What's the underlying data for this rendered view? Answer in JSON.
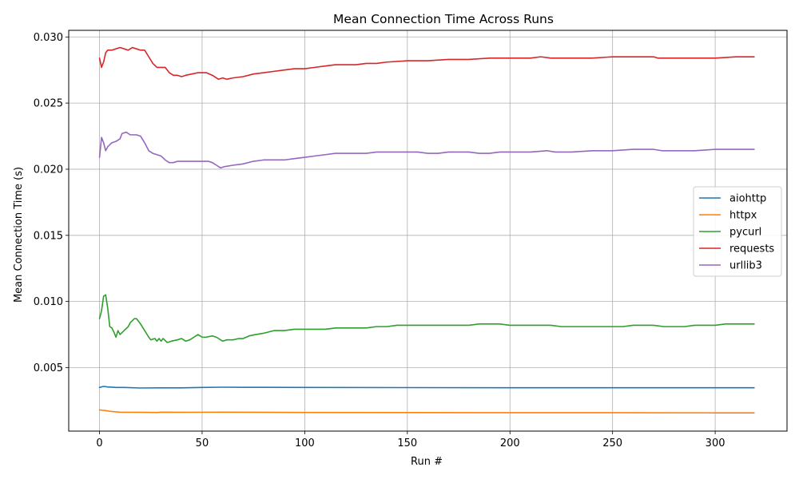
{
  "chart_data": {
    "type": "line",
    "title": "Mean Connection Time Across Runs",
    "xlabel": "Run #",
    "ylabel": "Mean Connection Time (s)",
    "xlim": [
      -15,
      335
    ],
    "ylim": [
      0.0002,
      0.0305
    ],
    "xticks": [
      0,
      50,
      100,
      150,
      200,
      250,
      300
    ],
    "yticks": [
      0.005,
      0.01,
      0.015,
      0.02,
      0.025,
      0.03
    ],
    "ytick_labels": [
      "0.005",
      "0.010",
      "0.015",
      "0.020",
      "0.025",
      "0.030"
    ],
    "grid": true,
    "legend_position": "center-right",
    "series": [
      {
        "name": "aiohttp",
        "color": "#1f77b4",
        "points": [
          [
            0,
            0.0035
          ],
          [
            2,
            0.00358
          ],
          [
            4,
            0.00354
          ],
          [
            8,
            0.0035
          ],
          [
            12,
            0.0035
          ],
          [
            20,
            0.00346
          ],
          [
            30,
            0.00347
          ],
          [
            40,
            0.00347
          ],
          [
            50,
            0.0035
          ],
          [
            60,
            0.00352
          ],
          [
            70,
            0.00351
          ],
          [
            80,
            0.00351
          ],
          [
            100,
            0.0035
          ],
          [
            150,
            0.00349
          ],
          [
            200,
            0.00348
          ],
          [
            250,
            0.00348
          ],
          [
            300,
            0.00348
          ],
          [
            319,
            0.00348
          ]
        ]
      },
      {
        "name": "httpx",
        "color": "#ff7f0e",
        "points": [
          [
            0,
            0.0018
          ],
          [
            3,
            0.00175
          ],
          [
            6,
            0.00168
          ],
          [
            10,
            0.00163
          ],
          [
            20,
            0.00162
          ],
          [
            28,
            0.00161
          ],
          [
            30,
            0.00163
          ],
          [
            40,
            0.00162
          ],
          [
            60,
            0.00163
          ],
          [
            80,
            0.00162
          ],
          [
            100,
            0.00161
          ],
          [
            150,
            0.0016
          ],
          [
            200,
            0.00159
          ],
          [
            250,
            0.00159
          ],
          [
            300,
            0.00158
          ],
          [
            319,
            0.00158
          ]
        ]
      },
      {
        "name": "pycurl",
        "color": "#2ca02c",
        "points": [
          [
            0,
            0.0087
          ],
          [
            1,
            0.0093
          ],
          [
            2,
            0.0104
          ],
          [
            3,
            0.0105
          ],
          [
            4,
            0.0095
          ],
          [
            5,
            0.0081
          ],
          [
            6,
            0.008
          ],
          [
            7,
            0.0077
          ],
          [
            8,
            0.0073
          ],
          [
            9,
            0.0078
          ],
          [
            10,
            0.0075
          ],
          [
            12,
            0.0078
          ],
          [
            14,
            0.0081
          ],
          [
            15,
            0.0084
          ],
          [
            17,
            0.0087
          ],
          [
            18,
            0.0087
          ],
          [
            20,
            0.0083
          ],
          [
            22,
            0.0078
          ],
          [
            24,
            0.0073
          ],
          [
            25,
            0.0071
          ],
          [
            27,
            0.0072
          ],
          [
            28,
            0.007
          ],
          [
            29,
            0.0072
          ],
          [
            30,
            0.007
          ],
          [
            31,
            0.0072
          ],
          [
            33,
            0.0069
          ],
          [
            35,
            0.007
          ],
          [
            38,
            0.0071
          ],
          [
            40,
            0.0072
          ],
          [
            42,
            0.007
          ],
          [
            44,
            0.0071
          ],
          [
            46,
            0.0073
          ],
          [
            48,
            0.0075
          ],
          [
            50,
            0.0073
          ],
          [
            52,
            0.0073
          ],
          [
            55,
            0.0074
          ],
          [
            57,
            0.0073
          ],
          [
            60,
            0.007
          ],
          [
            62,
            0.0071
          ],
          [
            65,
            0.0071
          ],
          [
            68,
            0.0072
          ],
          [
            70,
            0.0072
          ],
          [
            73,
            0.0074
          ],
          [
            76,
            0.0075
          ],
          [
            80,
            0.0076
          ],
          [
            85,
            0.0078
          ],
          [
            90,
            0.0078
          ],
          [
            95,
            0.0079
          ],
          [
            100,
            0.0079
          ],
          [
            105,
            0.0079
          ],
          [
            110,
            0.0079
          ],
          [
            115,
            0.008
          ],
          [
            120,
            0.008
          ],
          [
            125,
            0.008
          ],
          [
            130,
            0.008
          ],
          [
            135,
            0.0081
          ],
          [
            140,
            0.0081
          ],
          [
            145,
            0.0082
          ],
          [
            150,
            0.0082
          ],
          [
            155,
            0.0082
          ],
          [
            160,
            0.0082
          ],
          [
            165,
            0.0082
          ],
          [
            170,
            0.0082
          ],
          [
            175,
            0.0082
          ],
          [
            180,
            0.0082
          ],
          [
            185,
            0.0083
          ],
          [
            190,
            0.0083
          ],
          [
            195,
            0.0083
          ],
          [
            200,
            0.0082
          ],
          [
            205,
            0.0082
          ],
          [
            210,
            0.0082
          ],
          [
            215,
            0.0082
          ],
          [
            220,
            0.0082
          ],
          [
            225,
            0.0081
          ],
          [
            230,
            0.0081
          ],
          [
            235,
            0.0081
          ],
          [
            240,
            0.0081
          ],
          [
            245,
            0.0081
          ],
          [
            250,
            0.0081
          ],
          [
            255,
            0.0081
          ],
          [
            260,
            0.0082
          ],
          [
            265,
            0.0082
          ],
          [
            270,
            0.0082
          ],
          [
            275,
            0.0081
          ],
          [
            280,
            0.0081
          ],
          [
            285,
            0.0081
          ],
          [
            290,
            0.0082
          ],
          [
            295,
            0.0082
          ],
          [
            300,
            0.0082
          ],
          [
            305,
            0.0083
          ],
          [
            310,
            0.0083
          ],
          [
            319,
            0.0083
          ]
        ]
      },
      {
        "name": "requests",
        "color": "#d62728",
        "points": [
          [
            0,
            0.0284
          ],
          [
            1,
            0.0277
          ],
          [
            2,
            0.0281
          ],
          [
            3,
            0.0288
          ],
          [
            4,
            0.029
          ],
          [
            6,
            0.029
          ],
          [
            8,
            0.0291
          ],
          [
            10,
            0.0292
          ],
          [
            12,
            0.0291
          ],
          [
            14,
            0.029
          ],
          [
            16,
            0.0292
          ],
          [
            18,
            0.0291
          ],
          [
            20,
            0.029
          ],
          [
            22,
            0.029
          ],
          [
            24,
            0.0285
          ],
          [
            26,
            0.028
          ],
          [
            28,
            0.0277
          ],
          [
            30,
            0.0277
          ],
          [
            32,
            0.0277
          ],
          [
            34,
            0.0273
          ],
          [
            36,
            0.0271
          ],
          [
            38,
            0.0271
          ],
          [
            40,
            0.027
          ],
          [
            42,
            0.0271
          ],
          [
            45,
            0.0272
          ],
          [
            48,
            0.0273
          ],
          [
            50,
            0.0273
          ],
          [
            52,
            0.0273
          ],
          [
            55,
            0.0271
          ],
          [
            58,
            0.0268
          ],
          [
            60,
            0.0269
          ],
          [
            62,
            0.0268
          ],
          [
            65,
            0.0269
          ],
          [
            70,
            0.027
          ],
          [
            75,
            0.0272
          ],
          [
            80,
            0.0273
          ],
          [
            85,
            0.0274
          ],
          [
            90,
            0.0275
          ],
          [
            95,
            0.0276
          ],
          [
            100,
            0.0276
          ],
          [
            105,
            0.0277
          ],
          [
            110,
            0.0278
          ],
          [
            115,
            0.0279
          ],
          [
            120,
            0.0279
          ],
          [
            125,
            0.0279
          ],
          [
            130,
            0.028
          ],
          [
            135,
            0.028
          ],
          [
            140,
            0.0281
          ],
          [
            150,
            0.0282
          ],
          [
            160,
            0.0282
          ],
          [
            170,
            0.0283
          ],
          [
            180,
            0.0283
          ],
          [
            190,
            0.0284
          ],
          [
            200,
            0.0284
          ],
          [
            210,
            0.0284
          ],
          [
            215,
            0.0285
          ],
          [
            220,
            0.0284
          ],
          [
            230,
            0.0284
          ],
          [
            240,
            0.0284
          ],
          [
            250,
            0.0285
          ],
          [
            260,
            0.0285
          ],
          [
            270,
            0.0285
          ],
          [
            272,
            0.0284
          ],
          [
            280,
            0.0284
          ],
          [
            290,
            0.0284
          ],
          [
            300,
            0.0284
          ],
          [
            310,
            0.0285
          ],
          [
            319,
            0.0285
          ]
        ]
      },
      {
        "name": "urllib3",
        "color": "#9467bd",
        "points": [
          [
            0,
            0.0209
          ],
          [
            1,
            0.0224
          ],
          [
            2,
            0.022
          ],
          [
            3,
            0.0214
          ],
          [
            4,
            0.0217
          ],
          [
            6,
            0.022
          ],
          [
            8,
            0.0221
          ],
          [
            10,
            0.0223
          ],
          [
            11,
            0.0227
          ],
          [
            13,
            0.0228
          ],
          [
            15,
            0.0226
          ],
          [
            18,
            0.0226
          ],
          [
            20,
            0.0225
          ],
          [
            22,
            0.022
          ],
          [
            24,
            0.0214
          ],
          [
            26,
            0.0212
          ],
          [
            28,
            0.0211
          ],
          [
            30,
            0.021
          ],
          [
            32,
            0.0207
          ],
          [
            34,
            0.0205
          ],
          [
            36,
            0.0205
          ],
          [
            38,
            0.0206
          ],
          [
            40,
            0.0206
          ],
          [
            45,
            0.0206
          ],
          [
            50,
            0.0206
          ],
          [
            53,
            0.0206
          ],
          [
            55,
            0.0205
          ],
          [
            57,
            0.0203
          ],
          [
            59,
            0.0201
          ],
          [
            61,
            0.0202
          ],
          [
            65,
            0.0203
          ],
          [
            70,
            0.0204
          ],
          [
            75,
            0.0206
          ],
          [
            80,
            0.0207
          ],
          [
            85,
            0.0207
          ],
          [
            90,
            0.0207
          ],
          [
            95,
            0.0208
          ],
          [
            100,
            0.0209
          ],
          [
            105,
            0.021
          ],
          [
            110,
            0.0211
          ],
          [
            115,
            0.0212
          ],
          [
            120,
            0.0212
          ],
          [
            125,
            0.0212
          ],
          [
            130,
            0.0212
          ],
          [
            135,
            0.0213
          ],
          [
            140,
            0.0213
          ],
          [
            145,
            0.0213
          ],
          [
            150,
            0.0213
          ],
          [
            155,
            0.0213
          ],
          [
            160,
            0.0212
          ],
          [
            165,
            0.0212
          ],
          [
            170,
            0.0213
          ],
          [
            175,
            0.0213
          ],
          [
            180,
            0.0213
          ],
          [
            185,
            0.0212
          ],
          [
            190,
            0.0212
          ],
          [
            195,
            0.0213
          ],
          [
            200,
            0.0213
          ],
          [
            210,
            0.0213
          ],
          [
            218,
            0.0214
          ],
          [
            222,
            0.0213
          ],
          [
            230,
            0.0213
          ],
          [
            240,
            0.0214
          ],
          [
            250,
            0.0214
          ],
          [
            260,
            0.0215
          ],
          [
            270,
            0.0215
          ],
          [
            274,
            0.0214
          ],
          [
            280,
            0.0214
          ],
          [
            290,
            0.0214
          ],
          [
            300,
            0.0215
          ],
          [
            310,
            0.0215
          ],
          [
            319,
            0.0215
          ]
        ]
      }
    ]
  }
}
